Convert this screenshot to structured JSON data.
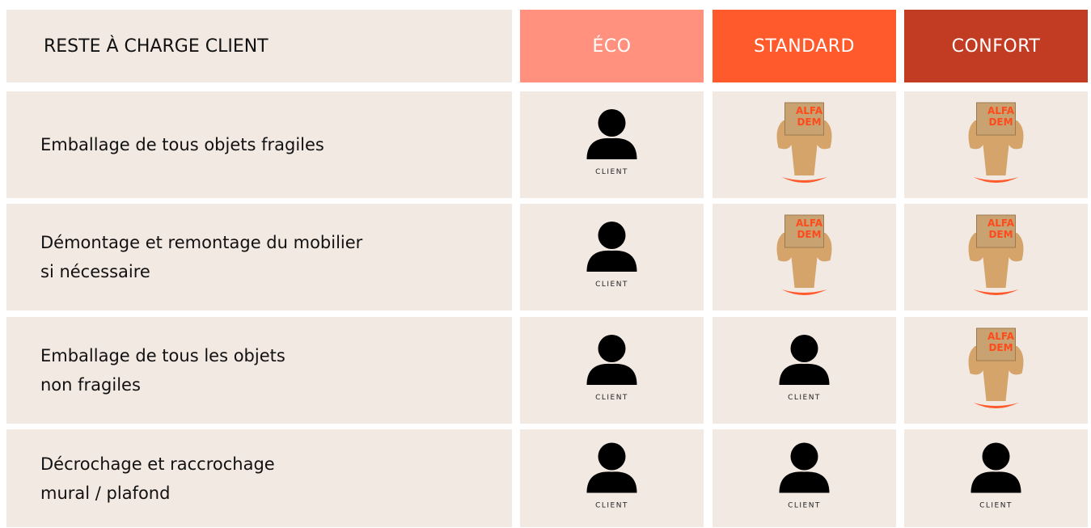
{
  "header": {
    "title": "RESTE À CHARGE CLIENT",
    "columns": [
      "ÉCO",
      "STANDARD",
      "CONFORT"
    ]
  },
  "rows": [
    {
      "label": [
        "Emballage de tous objets fragiles"
      ],
      "cells": [
        {
          "caption": "CLIENT"
        },
        {
          "logo": [
            "ALFA",
            "DEM"
          ]
        },
        {
          "logo": [
            "ALFA",
            "DEM"
          ]
        }
      ]
    },
    {
      "label": [
        "Démontage et remontage du mobilier",
        "si nécessaire"
      ],
      "cells": [
        {
          "caption": "CLIENT"
        },
        {
          "logo": [
            "ALFA",
            "DEM"
          ]
        },
        {
          "logo": [
            "ALFA",
            "DEM"
          ]
        }
      ]
    },
    {
      "label": [
        "Emballage de tous les objets",
        "non fragiles"
      ],
      "cells": [
        {
          "caption": "CLIENT"
        },
        {
          "caption": "CLIENT"
        },
        {
          "logo": [
            "ALFA",
            "DEM"
          ]
        }
      ]
    },
    {
      "label": [
        "Décrochage et raccrochage",
        "mural / plafond"
      ],
      "cells": [
        {
          "caption": "CLIENT"
        },
        {
          "caption": "CLIENT"
        },
        {
          "caption": "CLIENT"
        }
      ]
    }
  ]
}
